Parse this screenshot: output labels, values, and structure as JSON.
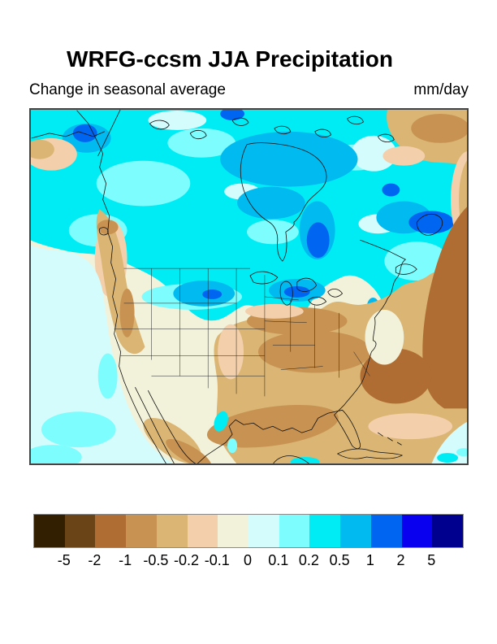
{
  "figure": {
    "title": "WRFG-ccsm JJA Precipitation",
    "subtitle": "Change in seasonal average",
    "units_label": "mm/day"
  },
  "chart_data": {
    "type": "heatmap",
    "subtype": "filled-contour geographic map",
    "title": "WRFG-ccsm JJA Precipitation",
    "subtitle": "Change in seasonal average",
    "units": "mm/day",
    "region": "North America (NARCCAP WRFG-ccsm domain: Alaska/Canada to Mexico/Caribbean)",
    "season": "JJA",
    "model": "WRFG-ccsm",
    "colorbar": {
      "orientation": "horizontal",
      "position": "bottom",
      "tick_labels": [
        "-5",
        "-2",
        "-1",
        "-0.5",
        "-0.2",
        "-0.1",
        "0",
        "0.1",
        "0.2",
        "0.5",
        "1",
        "2",
        "5"
      ],
      "levels_mm_day": [
        -5,
        -2,
        -1,
        -0.5,
        -0.2,
        -0.1,
        0,
        0.1,
        0.2,
        0.5,
        1,
        2,
        5
      ],
      "cell_colors": [
        "#321f02",
        "#6a4416",
        "#af6c33",
        "#c79252",
        "#dab573",
        "#f3d0ab",
        "#f2f2da",
        "#d4fcfc",
        "#7dfdfd",
        "#00ecf5",
        "#00baf0",
        "#0066f2",
        "#0a00f0",
        "#00008f"
      ]
    },
    "map_line_color": "#111111",
    "pattern_summary": [
      {
        "area": "Alaska and most of Canada (northern half of domain)",
        "change_mm_day": "+0.2 to +1 (cyan), locally +1 to +2 (blue patches near BC coast, Hudson Bay, Labrador, Newfoundland)"
      },
      {
        "area": "North-central US (Dakotas/Minnesota) and Great Lakes",
        "change_mm_day": "+0.2 to +1 (cyan/azure patch)"
      },
      {
        "area": "Central and southeastern US, Gulf of Mexico and western Atlantic",
        "change_mm_day": "-0.2 to -1 (tan to sienna brown band)"
      },
      {
        "area": "Western US interior",
        "change_mm_day": "-0.1 to 0 (pale cream)"
      },
      {
        "area": "Pacific Northwest coast / BC coast range",
        "change_mm_day": "-0.5 to -1 (brown band)"
      },
      {
        "area": "Northeast Pacific ocean off the west coast",
        "change_mm_day": "0 to +0.2 (pale cyan)"
      },
      {
        "area": "Top-right corner (Greenland side)",
        "change_mm_day": "-0.2 to -1 (tan/brown)"
      }
    ]
  }
}
